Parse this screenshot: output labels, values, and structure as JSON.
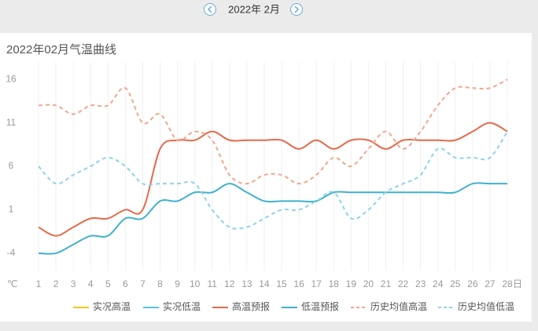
{
  "nav": {
    "month": "2022年 2月"
  },
  "chart_data": {
    "type": "line",
    "title": "2022年02月气温曲线",
    "y_unit": "℃",
    "x_unit": "日",
    "categories": [
      "1",
      "2",
      "3",
      "4",
      "5",
      "6",
      "7",
      "8",
      "9",
      "10",
      "11",
      "12",
      "13",
      "14",
      "15",
      "16",
      "17",
      "18",
      "19",
      "20",
      "21",
      "22",
      "23",
      "24",
      "25",
      "26",
      "27",
      "28"
    ],
    "ylim": [
      -6,
      18
    ],
    "yticks": [
      -4,
      1,
      6,
      11,
      16
    ],
    "grid": true,
    "series": [
      {
        "name": "实况高温",
        "color": "#f5c518",
        "dashed": false,
        "values": [
          null,
          null,
          null,
          null,
          null,
          null,
          null,
          null,
          null,
          null,
          null,
          null,
          null,
          null,
          null,
          null,
          null,
          null,
          null,
          null,
          null,
          null,
          null,
          null,
          null,
          null,
          null,
          null
        ]
      },
      {
        "name": "实况低温",
        "color": "#5bc0de",
        "dashed": false,
        "values": [
          null,
          null,
          null,
          null,
          null,
          null,
          null,
          null,
          null,
          null,
          null,
          null,
          null,
          null,
          null,
          null,
          null,
          null,
          null,
          null,
          null,
          null,
          null,
          null,
          null,
          null,
          null,
          null
        ]
      },
      {
        "name": "高温预报",
        "color": "#e8694a",
        "dashed": false,
        "values": [
          -1,
          -2,
          -1,
          0,
          0,
          1,
          1,
          8,
          9,
          9,
          10,
          9,
          9,
          9,
          9,
          8,
          9,
          8,
          9,
          9,
          8,
          9,
          9,
          9,
          9,
          10,
          11,
          10
        ]
      },
      {
        "name": "低温预报",
        "color": "#3fb1cf",
        "dashed": false,
        "values": [
          -4,
          -4,
          -3,
          -2,
          -2,
          0,
          0,
          2,
          2,
          3,
          3,
          4,
          3,
          2,
          2,
          2,
          2,
          3,
          3,
          3,
          3,
          3,
          3,
          3,
          3,
          4,
          4,
          4
        ]
      },
      {
        "name": "历史均值高温",
        "color": "#f4a58c",
        "dashed": true,
        "values": [
          13,
          13,
          12,
          13,
          13,
          15,
          11,
          12,
          9,
          10,
          9,
          5,
          4,
          5,
          5,
          4,
          5,
          7,
          6,
          8,
          10,
          8,
          10,
          13,
          15,
          15,
          15,
          16
        ]
      },
      {
        "name": "历史均值低温",
        "color": "#8fd3ea",
        "dashed": true,
        "values": [
          6,
          4,
          5,
          6,
          7,
          6,
          4,
          4,
          4,
          4,
          1,
          -1,
          -1,
          0,
          1,
          1,
          2,
          3,
          0,
          1,
          3,
          4,
          5,
          8,
          7,
          7,
          7,
          10
        ]
      }
    ]
  }
}
